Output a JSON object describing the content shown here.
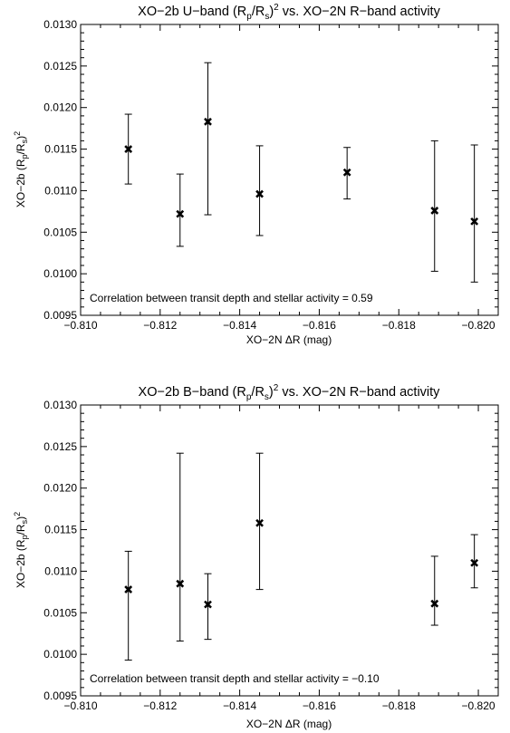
{
  "chart_data": [
    {
      "type": "scatter",
      "title_prefix": "XO−2b U−band (R",
      "title_sub1": "p",
      "title_mid": "/R",
      "title_sub2": "s",
      "title_close": ")",
      "title_sup": "2",
      "title_suffix": " vs. XO−2N R−band activity",
      "xlabel": "XO−2N ΔR (mag)",
      "ylabel_prefix": "XO−2b (R",
      "ylabel_sub1": "p",
      "ylabel_mid": "/R",
      "ylabel_sub2": "s",
      "ylabel_close": ")",
      "ylabel_sup": "2",
      "xlim": [
        -0.81,
        -0.8205
      ],
      "ylim": [
        0.0095,
        0.013
      ],
      "xticks": [
        -0.81,
        -0.812,
        -0.814,
        -0.816,
        -0.818,
        -0.82
      ],
      "xtick_labels": [
        "−0.810",
        "−0.812",
        "−0.814",
        "−0.816",
        "−0.818",
        "−0.820"
      ],
      "yticks": [
        0.0095,
        0.01,
        0.0105,
        0.011,
        0.0115,
        0.012,
        0.0125,
        0.013
      ],
      "ytick_labels": [
        "0.0095",
        "0.0100",
        "0.0105",
        "0.0110",
        "0.0115",
        "0.0120",
        "0.0125",
        "0.0130"
      ],
      "annotation": "Correlation between transit depth and stellar activity =  0.59",
      "points": [
        {
          "x": -0.8112,
          "y": 0.0115,
          "yerr_low": 0.01108,
          "yerr_high": 0.01192
        },
        {
          "x": -0.8125,
          "y": 0.01072,
          "yerr_low": 0.01033,
          "yerr_high": 0.0112
        },
        {
          "x": -0.8132,
          "y": 0.01183,
          "yerr_low": 0.01071,
          "yerr_high": 0.01254
        },
        {
          "x": -0.8145,
          "y": 0.01096,
          "yerr_low": 0.01046,
          "yerr_high": 0.01154
        },
        {
          "x": -0.8167,
          "y": 0.01122,
          "yerr_low": 0.0109,
          "yerr_high": 0.01152
        },
        {
          "x": -0.8189,
          "y": 0.01076,
          "yerr_low": 0.01003,
          "yerr_high": 0.0116
        },
        {
          "x": -0.8199,
          "y": 0.01063,
          "yerr_low": 0.0099,
          "yerr_high": 0.01155
        }
      ]
    },
    {
      "type": "scatter",
      "title_prefix": "XO−2b B−band (R",
      "title_sub1": "p",
      "title_mid": "/R",
      "title_sub2": "s",
      "title_close": ")",
      "title_sup": "2",
      "title_suffix": " vs. XO−2N R−band activity",
      "xlabel": "XO−2N ΔR (mag)",
      "ylabel_prefix": "XO−2b (R",
      "ylabel_sub1": "p",
      "ylabel_mid": "/R",
      "ylabel_sub2": "s",
      "ylabel_close": ")",
      "ylabel_sup": "2",
      "xlim": [
        -0.81,
        -0.8205
      ],
      "ylim": [
        0.0095,
        0.013
      ],
      "xticks": [
        -0.81,
        -0.812,
        -0.814,
        -0.816,
        -0.818,
        -0.82
      ],
      "xtick_labels": [
        "−0.810",
        "−0.812",
        "−0.814",
        "−0.816",
        "−0.818",
        "−0.820"
      ],
      "yticks": [
        0.0095,
        0.01,
        0.0105,
        0.011,
        0.0115,
        0.012,
        0.0125,
        0.013
      ],
      "ytick_labels": [
        "0.0095",
        "0.0100",
        "0.0105",
        "0.0110",
        "0.0115",
        "0.0120",
        "0.0125",
        "0.0130"
      ],
      "annotation": "Correlation between transit depth and stellar activity = −0.10",
      "points": [
        {
          "x": -0.8112,
          "y": 0.01078,
          "yerr_low": 0.00993,
          "yerr_high": 0.01124
        },
        {
          "x": -0.8125,
          "y": 0.01085,
          "yerr_low": 0.01016,
          "yerr_high": 0.01242
        },
        {
          "x": -0.8132,
          "y": 0.0106,
          "yerr_low": 0.01018,
          "yerr_high": 0.01097
        },
        {
          "x": -0.8145,
          "y": 0.01158,
          "yerr_low": 0.01078,
          "yerr_high": 0.01242
        },
        {
          "x": -0.8189,
          "y": 0.01061,
          "yerr_low": 0.01035,
          "yerr_high": 0.01118
        },
        {
          "x": -0.8199,
          "y": 0.0111,
          "yerr_low": 0.0108,
          "yerr_high": 0.01144
        }
      ]
    }
  ]
}
